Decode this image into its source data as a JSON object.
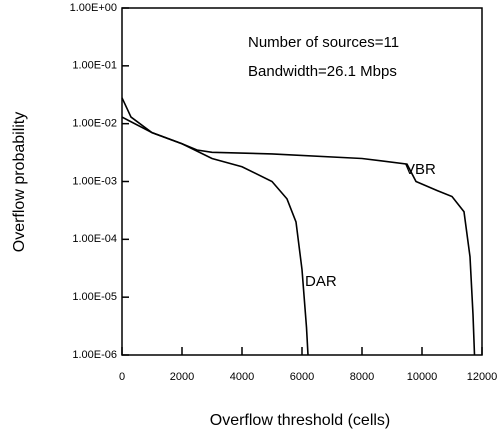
{
  "chart_data": {
    "type": "line",
    "xlabel": "Overflow threshold (cells)",
    "ylabel": "Overflow probability",
    "annotations": [
      "Number of sources=11",
      "Bandwidth=26.1  Mbps"
    ],
    "log_y": true,
    "xlim": [
      0,
      12000
    ],
    "xticks": [
      0,
      2000,
      4000,
      6000,
      8000,
      10000,
      12000
    ],
    "ylim": [
      1e-06,
      1
    ],
    "yticks": [
      {
        "value": 1,
        "label": "1.00E+00"
      },
      {
        "value": 0.1,
        "label": "1.00E-01"
      },
      {
        "value": 0.01,
        "label": "1.00E-02"
      },
      {
        "value": 0.001,
        "label": "1.00E-03"
      },
      {
        "value": 0.0001,
        "label": "1.00E-04"
      },
      {
        "value": 1e-05,
        "label": "1.00E-05"
      },
      {
        "value": 1e-06,
        "label": "1.00E-06"
      }
    ],
    "series": [
      {
        "name": "DAR",
        "color": "#000000",
        "x": [
          0,
          300,
          1000,
          2000,
          3000,
          4000,
          5000,
          5500,
          5800,
          6000,
          6150,
          6200
        ],
        "values": [
          0.028,
          0.013,
          0.007,
          0.0045,
          0.0025,
          0.0018,
          0.001,
          0.0005,
          0.0002,
          3e-05,
          3e-06,
          1e-06
        ]
      },
      {
        "name": "VBR",
        "color": "#000000",
        "x": [
          0,
          1000,
          2000,
          2500,
          3000,
          5000,
          8000,
          9500,
          9800,
          10500,
          11000,
          11400,
          11600,
          11700,
          11750
        ],
        "values": [
          0.013,
          0.007,
          0.0045,
          0.0035,
          0.0032,
          0.003,
          0.0025,
          0.002,
          0.001,
          0.0007,
          0.00055,
          0.0003,
          5e-05,
          5e-06,
          1e-06
        ]
      }
    ]
  }
}
